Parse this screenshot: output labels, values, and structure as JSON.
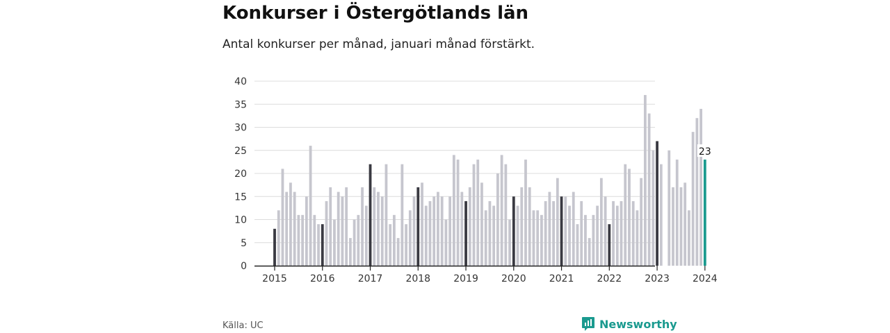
{
  "header": {
    "title": "Konkurser i Östergötlands län",
    "subtitle": "Antal konkurser per månad, januari månad förstärkt."
  },
  "footer": {
    "source": "Källa: UC",
    "brand_name": "Newsworthy"
  },
  "colors": {
    "bar": "#c6c6ce",
    "january_bar": "#3a3a42",
    "latest_bar": "#1a9a8f",
    "grid": "#dcdcdc",
    "axis": "#222222",
    "brand": "#1a9a8f"
  },
  "chart_data": {
    "type": "bar",
    "title": "Konkurser i Östergötlands län",
    "subtitle": "Antal konkurser per månad, januari månad förstärkt.",
    "xlabel": "",
    "ylabel": "",
    "ylim": [
      0,
      40
    ],
    "y_ticks": [
      0,
      5,
      10,
      15,
      20,
      25,
      30,
      35,
      40
    ],
    "x_tick_labels": [
      "2015",
      "2016",
      "2017",
      "2018",
      "2019",
      "2020",
      "2021",
      "2022",
      "2023",
      "2024"
    ],
    "grid": true,
    "start_month": "2015-01",
    "highlight": "January of each year",
    "annotation": {
      "month": "2024-01",
      "value": 23,
      "label": "23"
    },
    "values": [
      8,
      12,
      21,
      16,
      18,
      16,
      11,
      11,
      15,
      26,
      11,
      9,
      9,
      14,
      17,
      10,
      16,
      15,
      17,
      6,
      10,
      11,
      17,
      13,
      22,
      17,
      16,
      15,
      22,
      9,
      11,
      6,
      22,
      9,
      12,
      15,
      17,
      18,
      13,
      14,
      15,
      16,
      15,
      10,
      15,
      24,
      23,
      16,
      14,
      17,
      22,
      23,
      18,
      12,
      14,
      13,
      20,
      24,
      22,
      10,
      15,
      13,
      17,
      23,
      17,
      12,
      12,
      11,
      14,
      16,
      14,
      19,
      15,
      15,
      13,
      16,
      9,
      14,
      11,
      6,
      11,
      13,
      19,
      15,
      9,
      14,
      13,
      14,
      22,
      21,
      14,
      12,
      19,
      37,
      33,
      25,
      27,
      22,
      0,
      25,
      17,
      23,
      17,
      18,
      12,
      29,
      32,
      34,
      23
    ]
  }
}
